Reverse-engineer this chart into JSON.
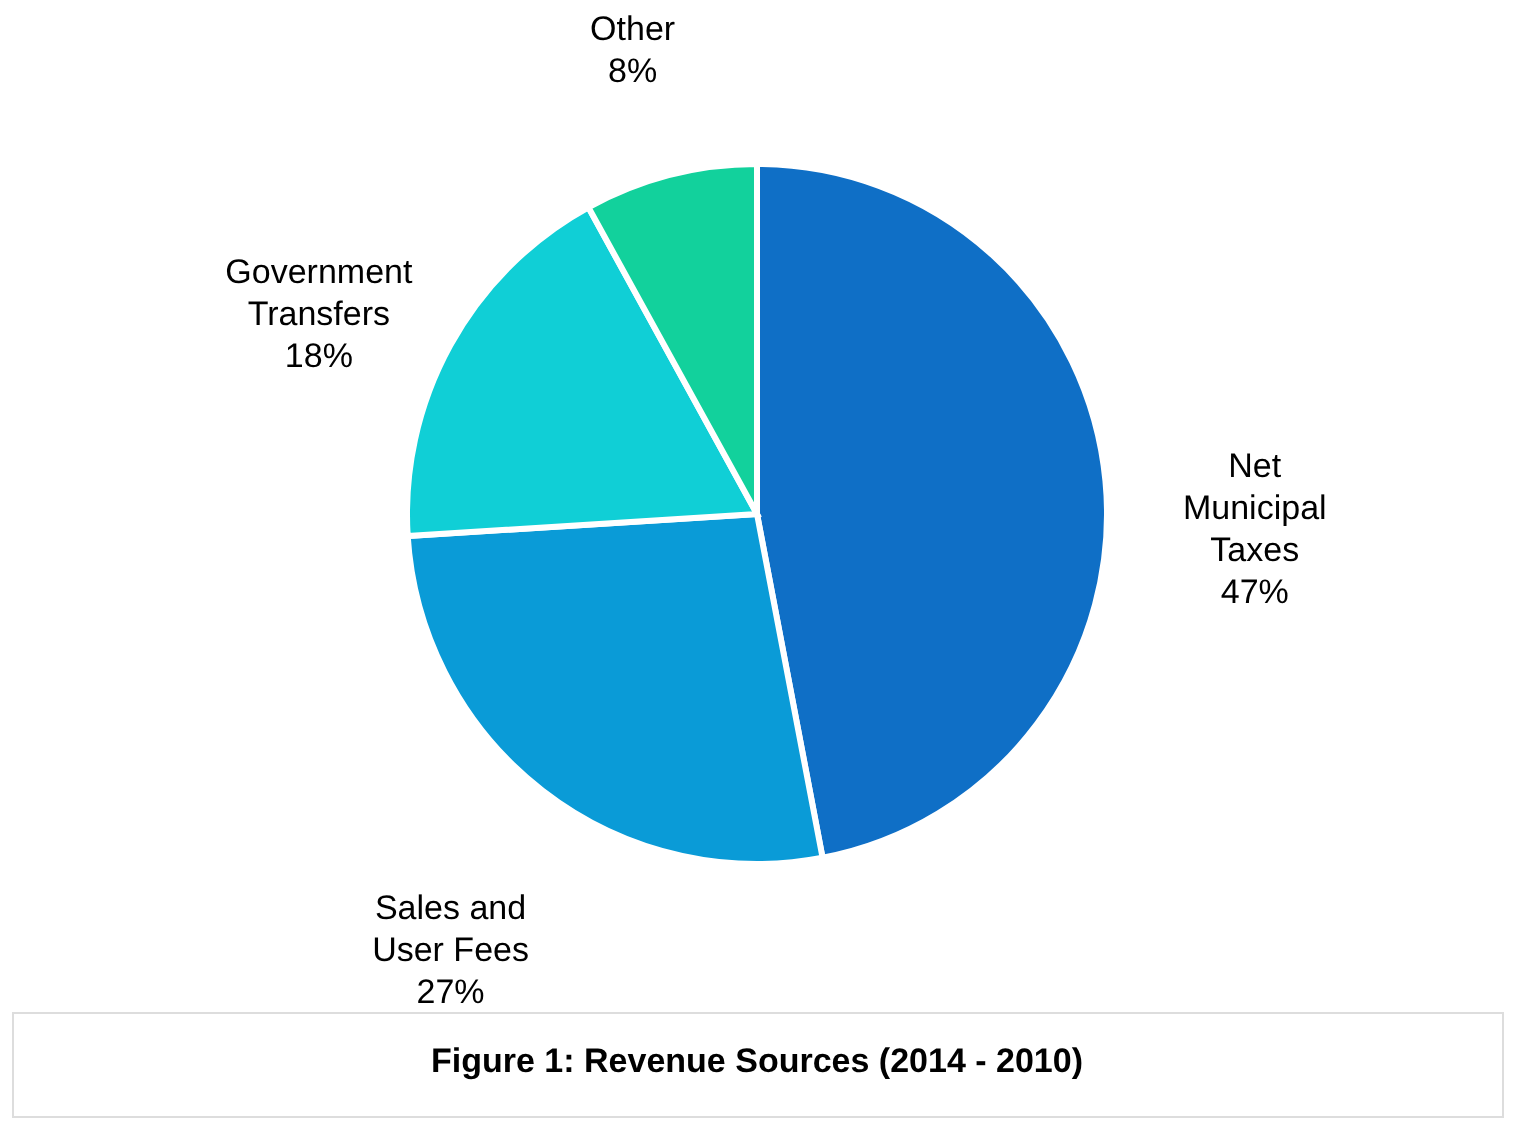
{
  "chart_data": {
    "type": "pie",
    "title": "Figure 1: Revenue Sources (2014 - 2010)",
    "categories": [
      "Net Municipal Taxes",
      "Sales and User Fees",
      "Government Transfers",
      "Other"
    ],
    "values": [
      47,
      27,
      18,
      8
    ],
    "colors": [
      "#0f6fc6",
      "#0a9bd7",
      "#10cfd6",
      "#12d19c"
    ],
    "value_labels": [
      "47%",
      "27%",
      "18%",
      "8%"
    ],
    "legend": false
  }
}
